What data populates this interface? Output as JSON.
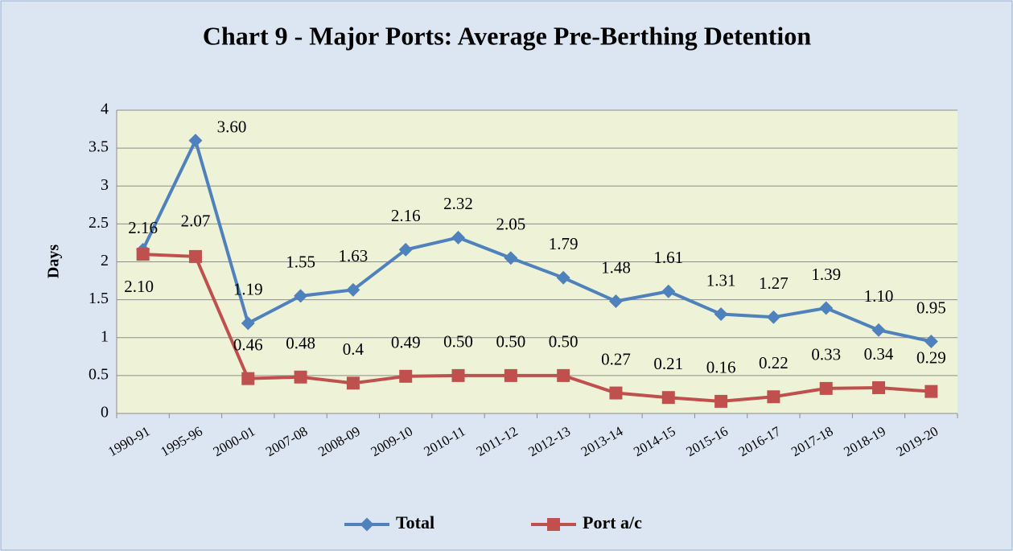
{
  "chart_data": {
    "type": "line",
    "title": "Chart 9 - Major Ports: Average Pre-Berthing Detention",
    "y_label": "Days",
    "categories": [
      "1990-91",
      "1995-96",
      "2000-01",
      "2007-08",
      "2008-09",
      "2009-10",
      "2010-11",
      "2011-12",
      "2012-13",
      "2013-14",
      "2014-15",
      "2015-16",
      "2016-17",
      "2017-18",
      "2018-19",
      "2019-20"
    ],
    "series": [
      {
        "name": "Total",
        "color": "#4f81bd",
        "values": [
          2.16,
          3.6,
          1.19,
          1.55,
          1.63,
          2.16,
          2.32,
          2.05,
          1.79,
          1.48,
          1.61,
          1.31,
          1.27,
          1.39,
          1.1,
          0.95
        ],
        "value_labels": [
          "2.16",
          "3.60",
          "1.19",
          "1.55",
          "1.63",
          "2.16",
          "2.32",
          "2.05",
          "1.79",
          "1.48",
          "1.61",
          "1.31",
          "1.27",
          "1.39",
          "1.10",
          "0.95"
        ]
      },
      {
        "name": "Port a/c",
        "color": "#c0504d",
        "values": [
          2.1,
          2.07,
          0.46,
          0.48,
          0.4,
          0.49,
          0.5,
          0.5,
          0.5,
          0.27,
          0.21,
          0.16,
          0.22,
          0.33,
          0.34,
          0.29
        ],
        "value_labels": [
          "2.10",
          "2.07",
          "0.46",
          "0.48",
          "0.4",
          "0.49",
          "0.50",
          "0.50",
          "0.50",
          "0.27",
          "0.21",
          "0.16",
          "0.22",
          "0.33",
          "0.34",
          "0.29"
        ]
      }
    ],
    "ylim": [
      0,
      4
    ],
    "yticks": [
      0,
      0.5,
      1,
      1.5,
      2,
      2.5,
      3,
      3.5,
      4
    ],
    "grid": true,
    "legend": "bottom"
  }
}
